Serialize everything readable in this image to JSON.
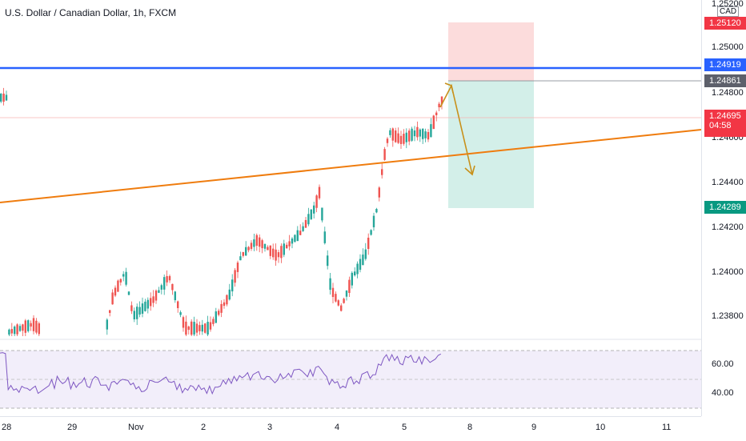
{
  "chart": {
    "title": "U.S. Dollar / Canadian Dollar, 1h, FXCM",
    "currency": "CAD",
    "price_ticks": [
      "1.25200",
      "1.25000",
      "1.24800",
      "1.24600",
      "1.24400",
      "1.24200",
      "1.24000",
      "1.23800"
    ],
    "rsi_ticks": [
      "60.00",
      "40.00"
    ],
    "x_labels": [
      "28",
      "29",
      "Nov",
      "2",
      "3",
      "4",
      "5",
      "8",
      "9",
      "10",
      "11"
    ],
    "price_labels": {
      "stop": "1.25120",
      "resistance": "1.24919",
      "entry": "1.24861",
      "last": "1.24695",
      "countdown": "04:58",
      "target": "1.24289"
    },
    "colors": {
      "up": "#26a69a",
      "down": "#ef5350",
      "resistance_line": "#2962ff",
      "trend_line": "#ef7c0e",
      "rsi_line": "#7e57c2",
      "stop_zone": "#fcdcdc",
      "target_zone": "#d3efe9",
      "arrow": "#c8901a"
    }
  },
  "chart_data": {
    "type": "candlestick",
    "symbol": "USDCAD",
    "timeframe": "1h",
    "ylim": [
      1.237,
      1.252
    ],
    "resistance": 1.24919,
    "last_price": 1.24695,
    "position": {
      "entry": 1.24861,
      "stop": 1.2512,
      "target": 1.24289
    },
    "rsi_levels": [
      60,
      40
    ]
  }
}
